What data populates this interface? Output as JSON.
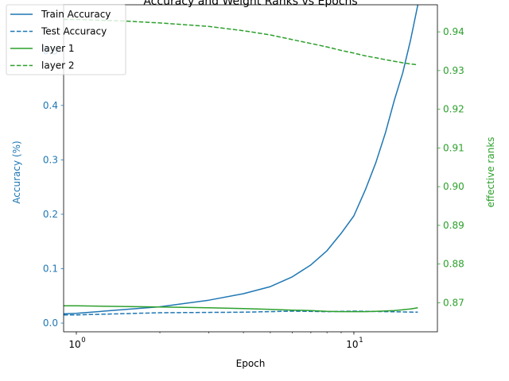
{
  "chart_data": {
    "type": "line",
    "title": "Accuracy and Weight Ranks vs Epochs",
    "xlabel": "Epoch",
    "ylabel_left": "Accuracy (%)",
    "ylabel_right": "effective ranks",
    "x_scale": "log",
    "xlim": [
      0.9,
      20
    ],
    "ylim_left": [
      -0.016,
      0.585
    ],
    "ylim_right": [
      0.8625,
      0.947
    ],
    "x_ticks": [
      {
        "value": 1,
        "base": "10",
        "exp": "0"
      },
      {
        "value": 10,
        "base": "10",
        "exp": "1"
      }
    ],
    "y_ticks_left": [
      "0.0",
      "0.1",
      "0.2",
      "0.3",
      "0.4",
      "0.5"
    ],
    "y_ticks_right": [
      "0.87",
      "0.88",
      "0.89",
      "0.90",
      "0.91",
      "0.92",
      "0.93",
      "0.94"
    ],
    "colors": {
      "left_axis": "#1f77b4",
      "right_axis": "#2ca02c"
    },
    "grid": false,
    "legend_position": "top-left",
    "series": [
      {
        "name": "Train Accuracy",
        "axis": "left",
        "color": "#1f77b4",
        "dash": "solid",
        "x": [
          0.9,
          1,
          1.5,
          2,
          3,
          4,
          5,
          6,
          7,
          8,
          9,
          10,
          11,
          12,
          13,
          14,
          15,
          16,
          17
        ],
        "y": [
          0.017,
          0.018,
          0.025,
          0.03,
          0.042,
          0.054,
          0.067,
          0.085,
          0.107,
          0.133,
          0.165,
          0.197,
          0.245,
          0.295,
          0.35,
          0.41,
          0.46,
          0.52,
          0.585
        ]
      },
      {
        "name": "Test Accuracy",
        "axis": "left",
        "color": "#1f77b4",
        "dash": "dashed",
        "x": [
          0.9,
          1,
          2,
          4,
          6,
          8,
          10,
          13,
          17
        ],
        "y": [
          0.015,
          0.015,
          0.019,
          0.02,
          0.022,
          0.021,
          0.022,
          0.021,
          0.02
        ]
      },
      {
        "name": "layer 1",
        "axis": "right",
        "color": "#2ca02c",
        "dash": "solid",
        "x": [
          0.9,
          1,
          2,
          3,
          4,
          5,
          6,
          7,
          8,
          9,
          10,
          11,
          12,
          13,
          14,
          15,
          16,
          17
        ],
        "y": [
          0.8692,
          0.8692,
          0.8689,
          0.8687,
          0.8685,
          0.8683,
          0.8681,
          0.868,
          0.8678,
          0.8677,
          0.8677,
          0.8677,
          0.8678,
          0.8679,
          0.868,
          0.8682,
          0.8684,
          0.8687
        ]
      },
      {
        "name": "layer 2",
        "axis": "right",
        "color": "#2ca02c",
        "dash": "dashed",
        "x": [
          0.9,
          1,
          1.5,
          2,
          3,
          4,
          5,
          6,
          7,
          8,
          9,
          10,
          11,
          12,
          13,
          14,
          15,
          16,
          17
        ],
        "y": [
          0.9432,
          0.9432,
          0.9428,
          0.9423,
          0.9414,
          0.9403,
          0.9392,
          0.938,
          0.937,
          0.9361,
          0.9352,
          0.9345,
          0.9338,
          0.9333,
          0.9328,
          0.9324,
          0.932,
          0.9317,
          0.9315
        ]
      }
    ]
  }
}
